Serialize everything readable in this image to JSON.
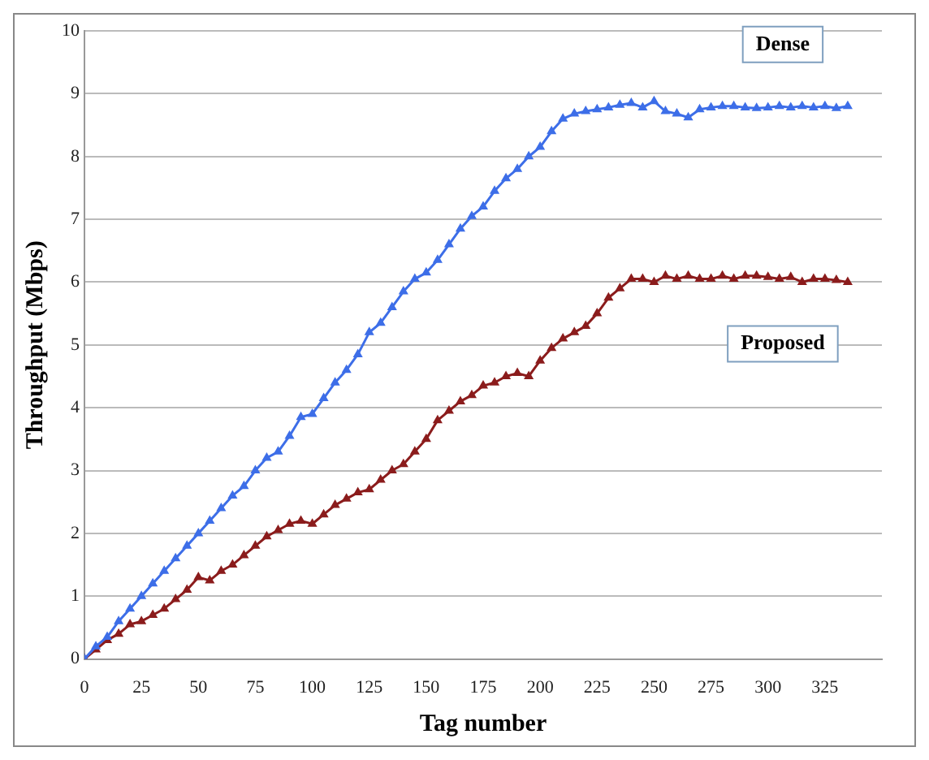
{
  "chart_data": {
    "type": "line",
    "xlabel": "Tag number",
    "ylabel": "Throughput (Mbps)",
    "xlim": [
      0,
      350
    ],
    "xticks": [
      0,
      25,
      50,
      75,
      100,
      125,
      150,
      175,
      200,
      225,
      250,
      275,
      300,
      325
    ],
    "ylim": [
      0,
      10
    ],
    "yticks": [
      0,
      1,
      2,
      3,
      4,
      5,
      6,
      7,
      8,
      9,
      10
    ],
    "grid": "y",
    "legend": false,
    "marker": "triangle",
    "line_style": "solid",
    "series": [
      {
        "name": "Dense",
        "color": "#3d6ee8",
        "x": [
          0,
          5,
          10,
          15,
          20,
          25,
          30,
          35,
          40,
          45,
          50,
          55,
          60,
          65,
          70,
          75,
          80,
          85,
          90,
          95,
          100,
          105,
          110,
          115,
          120,
          125,
          130,
          135,
          140,
          145,
          150,
          155,
          160,
          165,
          170,
          175,
          180,
          185,
          190,
          195,
          200,
          205,
          210,
          215,
          220,
          225,
          230,
          235,
          240,
          245,
          250,
          255,
          260,
          265,
          270,
          275,
          280,
          285,
          290,
          295,
          300,
          305,
          310,
          315,
          320,
          325,
          330,
          335
        ],
        "values": [
          0,
          0.2,
          0.35,
          0.6,
          0.8,
          1.0,
          1.2,
          1.4,
          1.6,
          1.8,
          2.0,
          2.2,
          2.4,
          2.6,
          2.75,
          3.0,
          3.2,
          3.3,
          3.55,
          3.85,
          3.9,
          4.15,
          4.4,
          4.6,
          4.85,
          5.2,
          5.35,
          5.6,
          5.85,
          6.05,
          6.15,
          6.35,
          6.6,
          6.85,
          7.05,
          7.2,
          7.45,
          7.65,
          7.8,
          8.0,
          8.15,
          8.4,
          8.6,
          8.68,
          8.72,
          8.75,
          8.78,
          8.82,
          8.85,
          8.78,
          8.88,
          8.72,
          8.68,
          8.62,
          8.75,
          8.78,
          8.8,
          8.8,
          8.78,
          8.77,
          8.78,
          8.8,
          8.78,
          8.8,
          8.78,
          8.8,
          8.77,
          8.8
        ]
      },
      {
        "name": "Proposed",
        "color": "#8b1c1c",
        "x": [
          0,
          5,
          10,
          15,
          20,
          25,
          30,
          35,
          40,
          45,
          50,
          55,
          60,
          65,
          70,
          75,
          80,
          85,
          90,
          95,
          100,
          105,
          110,
          115,
          120,
          125,
          130,
          135,
          140,
          145,
          150,
          155,
          160,
          165,
          170,
          175,
          180,
          185,
          190,
          195,
          200,
          205,
          210,
          215,
          220,
          225,
          230,
          235,
          240,
          245,
          250,
          255,
          260,
          265,
          270,
          275,
          280,
          285,
          290,
          295,
          300,
          305,
          310,
          315,
          320,
          325,
          330,
          335
        ],
        "values": [
          0,
          0.15,
          0.3,
          0.4,
          0.55,
          0.6,
          0.7,
          0.8,
          0.95,
          1.1,
          1.3,
          1.25,
          1.4,
          1.5,
          1.65,
          1.8,
          1.95,
          2.05,
          2.15,
          2.2,
          2.15,
          2.3,
          2.45,
          2.55,
          2.65,
          2.7,
          2.85,
          3.0,
          3.1,
          3.3,
          3.5,
          3.8,
          3.95,
          4.1,
          4.2,
          4.35,
          4.4,
          4.5,
          4.55,
          4.5,
          4.75,
          4.95,
          5.1,
          5.2,
          5.3,
          5.5,
          5.75,
          5.9,
          6.05,
          6.05,
          6.0,
          6.1,
          6.05,
          6.1,
          6.05,
          6.05,
          6.1,
          6.05,
          6.1,
          6.1,
          6.08,
          6.05,
          6.08,
          6.0,
          6.05,
          6.05,
          6.03,
          6.0
        ]
      }
    ]
  }
}
